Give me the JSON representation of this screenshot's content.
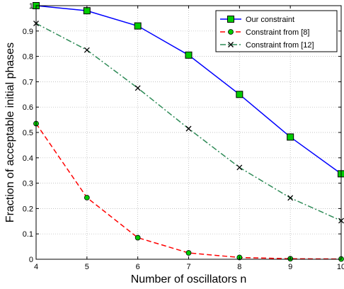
{
  "chart_data": {
    "type": "line",
    "title": "",
    "xlabel": "Number of oscillators n",
    "ylabel": "Fraction of acceptable initial phases",
    "xlim": [
      4,
      10
    ],
    "ylim": [
      0,
      1
    ],
    "grid": true,
    "legend_position": "top-right",
    "x_ticks": [
      4,
      5,
      6,
      7,
      8,
      9,
      10
    ],
    "y_ticks": [
      0,
      0.1,
      0.2,
      0.3,
      0.4,
      0.5,
      0.6,
      0.7,
      0.8,
      0.9,
      1
    ],
    "x_tick_labels": [
      "4",
      "5",
      "6",
      "7",
      "8",
      "9",
      "10"
    ],
    "y_tick_labels": [
      "0",
      "0.1",
      "0.2",
      "0.3",
      "0.4",
      "0.5",
      "0.6",
      "0.7",
      "0.8",
      "0.9",
      "1"
    ],
    "x": [
      4,
      5,
      6,
      7,
      8,
      9,
      10
    ],
    "series": [
      {
        "name": "Our constraint",
        "values": [
          1.0,
          0.98,
          0.92,
          0.805,
          0.65,
          0.482,
          0.337
        ],
        "color": "#0000ff",
        "line_style": "solid",
        "marker": "square",
        "marker_fill": "#00cc00"
      },
      {
        "name": "Constraint from [8]",
        "values": [
          0.535,
          0.243,
          0.085,
          0.025,
          0.007,
          0.002,
          0.001
        ],
        "color": "#ff0000",
        "line_style": "dashed",
        "marker": "circle",
        "marker_fill": "#00cc00"
      },
      {
        "name": "Constraint from [12]",
        "values": [
          0.93,
          0.825,
          0.675,
          0.515,
          0.362,
          0.242,
          0.152
        ],
        "color": "#2e8b57",
        "line_style": "dash-dot",
        "marker": "x",
        "marker_fill": "#000000"
      }
    ]
  }
}
